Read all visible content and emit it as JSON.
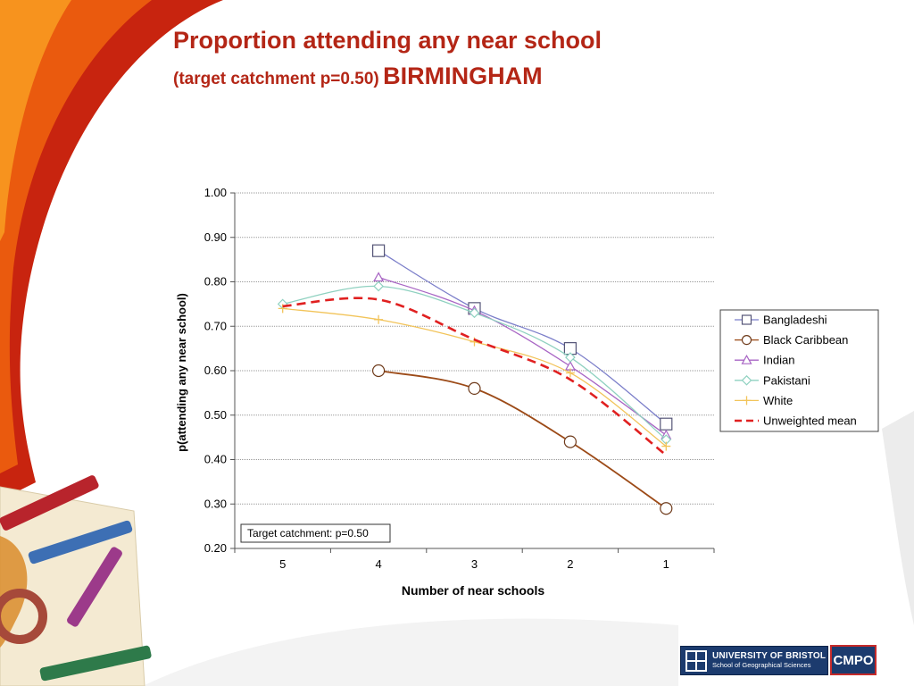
{
  "slide": {
    "title_line1": "Proportion attending any near school",
    "title_line2_sub": "(target catchment p=0.50)",
    "title_line2_city": "BIRMINGHAM",
    "title_color": "#b42616"
  },
  "logos": {
    "bristol_line1": "UNIVERSITY OF BRISTOL",
    "bristol_line2": "School of Geographical Sciences",
    "cmpo": "CMPO"
  },
  "chart_data": {
    "type": "line",
    "xlabel": "Number of near schools",
    "ylabel": "p(attending any near school)",
    "categories": [
      "5",
      "4",
      "3",
      "2",
      "1"
    ],
    "ylim": [
      0.2,
      1.0
    ],
    "yticks": [
      "0.20",
      "0.30",
      "0.40",
      "0.50",
      "0.60",
      "0.70",
      "0.80",
      "0.90",
      "1.00"
    ],
    "grid": true,
    "legend_position": "right",
    "annotation": "Target catchment: p=0.50",
    "series": [
      {
        "name": "Bangladeshi",
        "color": "#7b7ec9",
        "marker": "square",
        "values": [
          null,
          0.87,
          0.74,
          0.65,
          0.48
        ]
      },
      {
        "name": "Black Caribbean",
        "color": "#9c4a17",
        "marker": "circle",
        "values": [
          null,
          0.6,
          0.56,
          0.44,
          0.29
        ]
      },
      {
        "name": "Indian",
        "color": "#a865c4",
        "marker": "triangle",
        "values": [
          null,
          0.81,
          0.735,
          0.61,
          0.455
        ]
      },
      {
        "name": "Pakistani",
        "color": "#8fd1c0",
        "marker": "diamond",
        "values": [
          0.75,
          0.79,
          0.73,
          0.63,
          0.445
        ]
      },
      {
        "name": "White",
        "color": "#f2c45a",
        "marker": "plus",
        "values": [
          0.74,
          0.715,
          0.665,
          0.595,
          0.43
        ]
      },
      {
        "name": "Unweighted mean",
        "color": "#e02020",
        "marker": "none",
        "dashed": true,
        "values": [
          0.745,
          0.76,
          0.67,
          0.58,
          0.41
        ]
      }
    ]
  }
}
